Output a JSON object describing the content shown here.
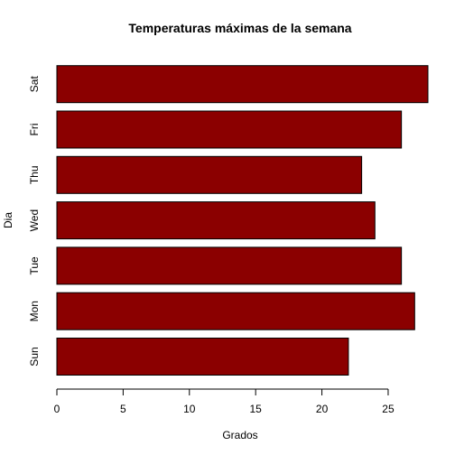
{
  "chart_data": {
    "type": "bar",
    "orientation": "horizontal",
    "title": "Temperaturas máximas de la semana",
    "xlabel": "Grados",
    "ylabel": "Dia",
    "categories": [
      "Sun",
      "Mon",
      "Tue",
      "Wed",
      "Thu",
      "Fri",
      "Sat"
    ],
    "values": [
      22,
      27,
      26,
      24,
      23,
      26,
      28
    ],
    "xlim": [
      0,
      28
    ],
    "xticks": [
      0,
      5,
      10,
      15,
      20,
      25
    ],
    "bar_color": "#8B0000",
    "grid": false
  }
}
